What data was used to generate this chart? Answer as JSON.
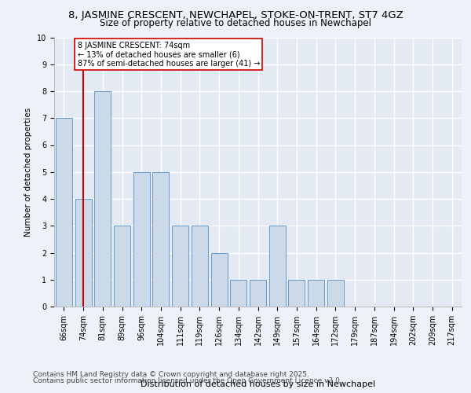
{
  "title1": "8, JASMINE CRESCENT, NEWCHAPEL, STOKE-ON-TRENT, ST7 4GZ",
  "title2": "Size of property relative to detached houses in Newchapel",
  "xlabel": "Distribution of detached houses by size in Newchapel",
  "ylabel": "Number of detached properties",
  "categories": [
    "66sqm",
    "74sqm",
    "81sqm",
    "89sqm",
    "96sqm",
    "104sqm",
    "111sqm",
    "119sqm",
    "126sqm",
    "134sqm",
    "142sqm",
    "149sqm",
    "157sqm",
    "164sqm",
    "172sqm",
    "179sqm",
    "187sqm",
    "194sqm",
    "202sqm",
    "209sqm",
    "217sqm"
  ],
  "values": [
    7,
    4,
    8,
    3,
    5,
    5,
    3,
    3,
    2,
    1,
    1,
    3,
    1,
    1,
    1,
    0,
    0,
    0,
    0,
    0,
    0
  ],
  "bar_color": "#ccd9e8",
  "bar_edge_color": "#6699cc",
  "highlight_index": 1,
  "highlight_line_color": "#cc0000",
  "annotation_text": "8 JASMINE CRESCENT: 74sqm\n← 13% of detached houses are smaller (6)\n87% of semi-detached houses are larger (41) →",
  "annotation_box_color": "#ffffff",
  "annotation_box_edge": "#cc0000",
  "ylim": [
    0,
    10
  ],
  "yticks": [
    0,
    1,
    2,
    3,
    4,
    5,
    6,
    7,
    8,
    9,
    10
  ],
  "footer1": "Contains HM Land Registry data © Crown copyright and database right 2025.",
  "footer2": "Contains public sector information licensed under the Open Government Licence v3.0.",
  "background_color": "#eef2f8",
  "plot_bg_color": "#e4eaf4",
  "grid_color": "#ffffff",
  "title1_fontsize": 9.5,
  "title2_fontsize": 8.5,
  "xlabel_fontsize": 8,
  "ylabel_fontsize": 7.5,
  "tick_fontsize": 7,
  "footer_fontsize": 6.5,
  "annot_fontsize": 7
}
